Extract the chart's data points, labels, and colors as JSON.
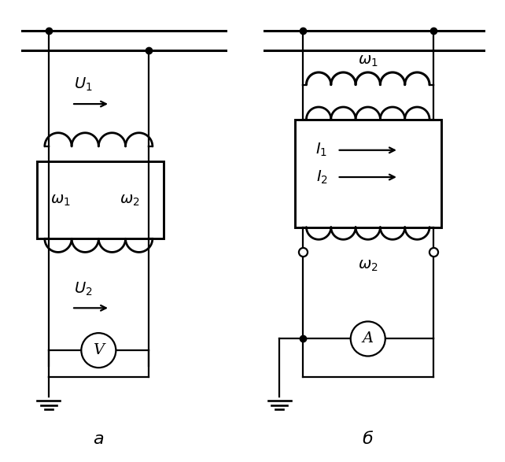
{
  "fig_width": 6.42,
  "fig_height": 5.87,
  "dpi": 100,
  "lw": 1.6,
  "lw_thick": 2.2,
  "bg_color": "#ffffff",
  "lc": "#000000",
  "fs_label": 14,
  "fs_meter": 13,
  "fs_greek": 13
}
